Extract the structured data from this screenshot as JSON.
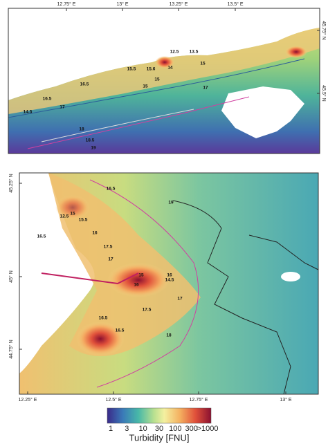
{
  "panels": [
    {
      "top_ticks": [
        "12.75° E",
        "13° E",
        "13.25° E",
        "13.5° E"
      ],
      "right_ticks": [
        "45.75° N",
        "45.5° N"
      ],
      "contour_labels": [
        "12.5",
        "13.5",
        "15.5",
        "15.6",
        "14",
        "15",
        "16.5",
        "15",
        "15",
        "17",
        "16.5",
        "14.5",
        "17",
        "18",
        "18.5",
        "19"
      ]
    },
    {
      "left_ticks": [
        "45.25° N",
        "45° N",
        "44.75° N"
      ],
      "bottom_ticks": [
        "12.25° E",
        "12.5° E",
        "12.75° E",
        "13° E"
      ],
      "contour_labels": [
        "16.5",
        "19",
        "15",
        "12.5",
        "15.5",
        "16",
        "16.5",
        "17.5",
        "17",
        "16",
        "14.5",
        "15",
        "16",
        "17",
        "17.5",
        "16.5",
        "16.5",
        "18"
      ]
    }
  ],
  "colorbar": {
    "ticks": [
      "1",
      "3",
      "10",
      "30",
      "100",
      "300",
      ">1000"
    ],
    "title": "Turbidity [FNU]"
  }
}
